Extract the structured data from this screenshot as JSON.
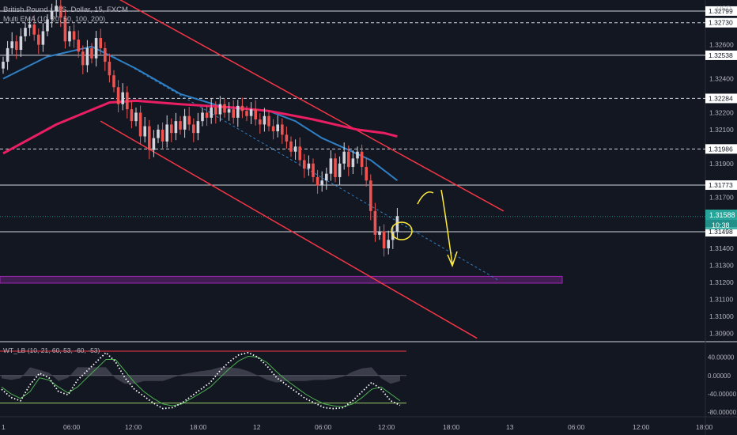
{
  "header": {
    "symbol_title": "British Pound / U.S. Dollar, 15, FXCM",
    "indicator_ema": "Multi EMA (10, 20, 50, 100, 200)",
    "currency": "USD"
  },
  "oscillator": {
    "title": "WT_LB (10, 21, 60, 53, -60, -53)",
    "axis_labels": [
      "40.00000",
      "0.00000",
      "-40.00000",
      "-80.00000"
    ]
  },
  "price_axis": {
    "tick_labels": [
      "1.32600",
      "1.32400",
      "1.32200",
      "1.32100",
      "1.31900",
      "1.31700",
      "1.31400",
      "1.31300",
      "1.31200",
      "1.31100",
      "1.31000",
      "1.30900"
    ],
    "current_price": "1.31588",
    "countdown": "10:38"
  },
  "time_axis": {
    "labels": [
      "1",
      "06:00",
      "12:00",
      "18:00",
      "12",
      "06:00",
      "12:00",
      "18:00",
      "13",
      "06:00",
      "12:00",
      "18:00"
    ]
  },
  "colors": {
    "background": "#131722",
    "channel": "#f23645",
    "ema_fast": "#2f7fc4",
    "ema_slow": "#e91e63",
    "zone": "#9c27b0",
    "price_label": "#26a69a",
    "annotation": "#ffeb3b"
  },
  "chart_data": {
    "type": "candlestick",
    "symbol": "GBP/USD",
    "timeframe": "15",
    "ylim": [
      1.3085,
      1.3285
    ],
    "current_price": 1.31588,
    "horizontal_levels": [
      {
        "value": 1.32799,
        "label": "1.32799",
        "style": "solid"
      },
      {
        "value": 1.3273,
        "label": "1.32730",
        "style": "dashed"
      },
      {
        "value": 1.32538,
        "label": "1.32538",
        "style": "solid"
      },
      {
        "value": 1.32284,
        "label": "1.32284",
        "style": "dashed"
      },
      {
        "value": 1.31986,
        "label": "1.31986",
        "style": "dashed"
      },
      {
        "value": 1.31773,
        "label": "1.31773",
        "style": "solid"
      },
      {
        "value": 1.31498,
        "label": "1.31498",
        "style": "solid"
      }
    ],
    "zone": {
      "low": 1.31195,
      "high": 1.31235
    },
    "closes": [
      1.325,
      1.3258,
      1.3262,
      1.3257,
      1.3265,
      1.327,
      1.3272,
      1.3266,
      1.326,
      1.3268,
      1.3275,
      1.328,
      1.3283,
      1.3276,
      1.3262,
      1.3268,
      1.3263,
      1.3256,
      1.3248,
      1.3258,
      1.3252,
      1.3264,
      1.3258,
      1.325,
      1.3242,
      1.3235,
      1.3225,
      1.3232,
      1.3222,
      1.3215,
      1.322,
      1.3206,
      1.3212,
      1.3198,
      1.3205,
      1.321,
      1.3203,
      1.3213,
      1.3208,
      1.3215,
      1.321,
      1.3218,
      1.3213,
      1.3208,
      1.3215,
      1.322,
      1.3217,
      1.3223,
      1.3219,
      1.3225,
      1.322,
      1.3222,
      1.3217,
      1.3224,
      1.3221,
      1.3218,
      1.3222,
      1.3216,
      1.3213,
      1.3218,
      1.3212,
      1.3209,
      1.3213,
      1.3207,
      1.3203,
      1.3197,
      1.32,
      1.3192,
      1.3187,
      1.319,
      1.3182,
      1.3177,
      1.318,
      1.3184,
      1.3193,
      1.3182,
      1.319,
      1.3197,
      1.3188,
      1.3193,
      1.3197,
      1.3188,
      1.318,
      1.3162,
      1.3148,
      1.315,
      1.314,
      1.3145,
      1.315,
      1.3159
    ],
    "ema_fast": [
      {
        "t": 0,
        "v": 1.324
      },
      {
        "t": 10,
        "v": 1.3253
      },
      {
        "t": 20,
        "v": 1.3259
      },
      {
        "t": 30,
        "v": 1.3246
      },
      {
        "t": 40,
        "v": 1.3231
      },
      {
        "t": 50,
        "v": 1.3223
      },
      {
        "t": 60,
        "v": 1.3221
      },
      {
        "t": 66,
        "v": 1.3215
      },
      {
        "t": 72,
        "v": 1.3205
      },
      {
        "t": 78,
        "v": 1.3198
      },
      {
        "t": 83,
        "v": 1.3192
      },
      {
        "t": 87,
        "v": 1.3184
      },
      {
        "t": 89,
        "v": 1.318
      }
    ],
    "ema_slow": [
      {
        "t": 0,
        "v": 1.3196
      },
      {
        "t": 12,
        "v": 1.3213
      },
      {
        "t": 24,
        "v": 1.3226
      },
      {
        "t": 30,
        "v": 1.3227
      },
      {
        "t": 40,
        "v": 1.3225
      },
      {
        "t": 52,
        "v": 1.3223
      },
      {
        "t": 60,
        "v": 1.3221
      },
      {
        "t": 70,
        "v": 1.3216
      },
      {
        "t": 80,
        "v": 1.321
      },
      {
        "t": 86,
        "v": 1.3208
      },
      {
        "t": 89,
        "v": 1.3206
      }
    ],
    "channel_upper": [
      {
        "t": 24,
        "v": 1.329
      },
      {
        "t": 113,
        "v": 1.3162
      }
    ],
    "channel_lower": [
      {
        "t": 22,
        "v": 1.3215
      },
      {
        "t": 107,
        "v": 1.3087
      }
    ],
    "channel_mid": [
      {
        "t": 25,
        "v": 1.3253
      },
      {
        "t": 112,
        "v": 1.3121
      }
    ],
    "wt1": [
      -30,
      -48,
      -55,
      -20,
      5,
      -5,
      -35,
      -42,
      -10,
      10,
      30,
      50,
      30,
      -5,
      -30,
      -45,
      -60,
      -72,
      -70,
      -60,
      -45,
      -30,
      -15,
      10,
      30,
      45,
      50,
      40,
      20,
      -5,
      -20,
      -35,
      -50,
      -60,
      -70,
      -72,
      -70,
      -55,
      -35,
      -15,
      -30,
      -55,
      -65
    ],
    "wt2": [
      -25,
      -40,
      -50,
      -35,
      -5,
      -10,
      -25,
      -38,
      -25,
      -5,
      15,
      35,
      35,
      10,
      -15,
      -35,
      -50,
      -62,
      -66,
      -62,
      -50,
      -38,
      -25,
      -5,
      15,
      32,
      42,
      40,
      28,
      8,
      -10,
      -25,
      -40,
      -52,
      -62,
      -66,
      -68,
      -62,
      -48,
      -30,
      -25,
      -40,
      -55
    ]
  }
}
